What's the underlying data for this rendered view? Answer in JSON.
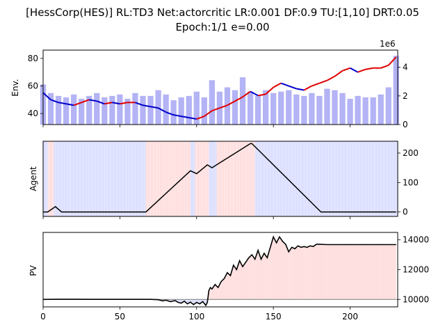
{
  "title_line1": "[HessCorp(HES)] RL:TD3 Net:actorcritic LR:0.001 DF:0.9 TU:[1,10] DRT:0.05",
  "title_line2": "Epoch:1/1 e=0.00",
  "chart_data": [
    {
      "type": "line",
      "panel": "env",
      "ylabel": "Env.",
      "ylim": [
        32,
        86
      ],
      "yticks": [
        "40",
        "60",
        "80"
      ],
      "right_axis": {
        "ylim": [
          0,
          5.2
        ],
        "ticks": [
          "0",
          "2",
          "4"
        ],
        "offset_label": "1e6"
      },
      "price_series": {
        "x": [
          0,
          5,
          10,
          15,
          20,
          25,
          30,
          35,
          40,
          45,
          50,
          55,
          60,
          65,
          70,
          75,
          80,
          85,
          90,
          95,
          100,
          105,
          110,
          115,
          120,
          125,
          130,
          135,
          140,
          145,
          150,
          155,
          160,
          165,
          170,
          175,
          180,
          185,
          190,
          195,
          200,
          205,
          210,
          215,
          220,
          225,
          230
        ],
        "y": [
          55,
          50,
          48,
          47,
          46,
          48,
          50,
          49,
          47,
          48,
          47,
          48,
          48,
          46,
          45,
          44,
          41,
          39,
          38,
          37,
          36,
          38,
          42,
          44,
          46,
          49,
          52,
          56,
          53,
          54,
          59,
          62,
          60,
          58,
          57,
          60,
          62,
          64,
          67,
          71,
          73,
          70,
          72,
          73,
          73,
          75,
          81
        ]
      },
      "volume_bars": {
        "x": [
          0,
          5,
          10,
          15,
          20,
          25,
          30,
          35,
          40,
          45,
          50,
          55,
          60,
          65,
          70,
          75,
          80,
          85,
          90,
          95,
          100,
          105,
          110,
          115,
          120,
          125,
          130,
          135,
          140,
          145,
          150,
          155,
          160,
          165,
          170,
          175,
          180,
          185,
          190,
          195,
          200,
          205,
          210,
          215,
          220,
          225,
          230
        ],
        "values": [
          2.8,
          2.2,
          2.0,
          1.9,
          2.1,
          1.8,
          2.0,
          2.2,
          1.9,
          2.0,
          2.1,
          1.8,
          2.2,
          2.0,
          2.0,
          2.4,
          2.1,
          1.7,
          1.9,
          2.0,
          2.3,
          1.9,
          3.1,
          2.3,
          2.6,
          2.4,
          3.3,
          2.3,
          2.0,
          2.4,
          2.2,
          2.3,
          2.4,
          2.1,
          2.0,
          2.2,
          2.0,
          2.5,
          2.4,
          2.2,
          1.8,
          2.0,
          1.9,
          1.9,
          2.1,
          2.6,
          4.8
        ]
      },
      "colors": {
        "volume": "#b3b3f5",
        "price_up": "#e00000",
        "price_down": "#0000cc"
      }
    },
    {
      "type": "line",
      "panel": "agent",
      "ylabel": "Agent",
      "ylim": [
        -15,
        240
      ],
      "right_ticks": [
        "0",
        "100",
        "200"
      ],
      "x": [
        0,
        3,
        8,
        12,
        67,
        96,
        100,
        107,
        110,
        113,
        135,
        136,
        181,
        230
      ],
      "y": [
        0,
        0,
        18,
        0,
        0,
        140,
        130,
        160,
        150,
        160,
        232,
        232,
        0,
        0
      ],
      "shading": [
        {
          "from": 0,
          "to": 3,
          "state": "buy"
        },
        {
          "from": 3,
          "to": 7,
          "state": "sell"
        },
        {
          "from": 7,
          "to": 67,
          "state": "buy"
        },
        {
          "from": 67,
          "to": 96,
          "state": "sell"
        },
        {
          "from": 96,
          "to": 99,
          "state": "buy"
        },
        {
          "from": 99,
          "to": 108,
          "state": "sell"
        },
        {
          "from": 108,
          "to": 113,
          "state": "buy"
        },
        {
          "from": 113,
          "to": 138,
          "state": "sell"
        },
        {
          "from": 138,
          "to": 231,
          "state": "buy"
        }
      ],
      "colors": {
        "buy": "#dde0ff",
        "sell": "#ffe0e0",
        "line": "#000000"
      }
    },
    {
      "type": "area",
      "panel": "pv",
      "ylabel": "PV",
      "ylim": [
        9500,
        14500
      ],
      "right_ticks": [
        "10000",
        "12000",
        "14000"
      ],
      "baseline": 10000,
      "x": [
        0,
        10,
        20,
        30,
        40,
        50,
        60,
        70,
        75,
        78,
        80,
        83,
        86,
        88,
        90,
        92,
        94,
        96,
        98,
        100,
        102,
        104,
        106,
        107,
        108,
        109,
        110,
        112,
        114,
        116,
        118,
        120,
        122,
        124,
        126,
        128,
        130,
        132,
        134,
        136,
        138,
        140,
        142,
        144,
        146,
        148,
        150,
        152,
        154,
        156,
        158,
        160,
        162,
        164,
        166,
        168,
        170,
        172,
        174,
        176,
        178,
        180,
        185,
        190,
        200,
        210,
        220,
        230
      ],
      "y": [
        10000,
        10010,
        10010,
        10005,
        10005,
        10005,
        10005,
        10005,
        9980,
        9900,
        9950,
        9850,
        9920,
        9800,
        9750,
        9880,
        9700,
        9820,
        9650,
        9800,
        9700,
        9850,
        9600,
        9800,
        10600,
        10800,
        10700,
        11000,
        10800,
        11200,
        11400,
        11800,
        11600,
        12300,
        12000,
        12600,
        12200,
        12500,
        12800,
        13000,
        12700,
        13300,
        12700,
        13100,
        12800,
        13500,
        14200,
        13800,
        14200,
        13900,
        13700,
        13200,
        13500,
        13400,
        13600,
        13500,
        13550,
        13500,
        13600,
        13550,
        13700,
        13700,
        13680,
        13680,
        13680,
        13680,
        13680,
        13680
      ],
      "colors": {
        "gain": "#ffe0e0",
        "loss": "#dde0ff",
        "line": "#000000",
        "baseline": "#888888"
      }
    }
  ],
  "x_axis": {
    "xlim": [
      0,
      231
    ],
    "ticks": [
      "0",
      "50",
      "100",
      "150",
      "200"
    ]
  }
}
